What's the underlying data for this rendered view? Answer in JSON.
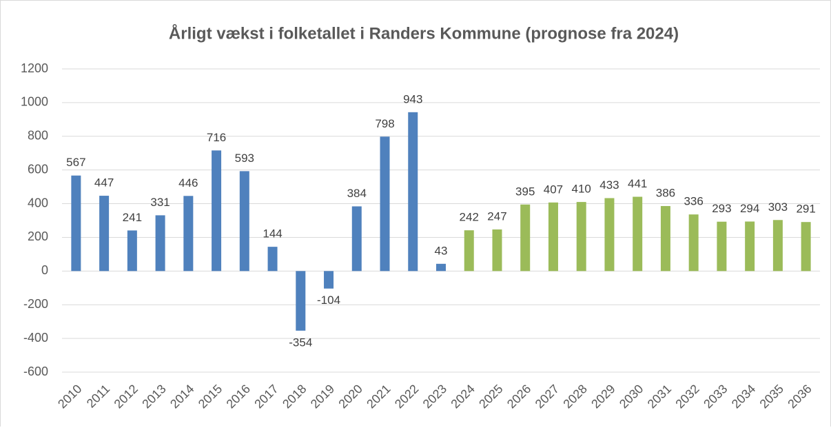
{
  "chart_data": {
    "type": "bar",
    "title": "Årligt vækst i folketallet i Randers Kommune (prognose fra 2024)",
    "categories": [
      "2010",
      "2011",
      "2012",
      "2013",
      "2014",
      "2015",
      "2016",
      "2017",
      "2018",
      "2019",
      "2020",
      "2021",
      "2022",
      "2023",
      "2024",
      "2025",
      "2026",
      "2027",
      "2028",
      "2029",
      "2030",
      "2031",
      "2032",
      "2033",
      "2034",
      "2035",
      "2036"
    ],
    "values": [
      567,
      447,
      241,
      331,
      446,
      716,
      593,
      144,
      -354,
      -104,
      384,
      798,
      943,
      43,
      242,
      247,
      395,
      407,
      410,
      433,
      441,
      386,
      336,
      293,
      294,
      303,
      291
    ],
    "colors": [
      "#4f81bd",
      "#4f81bd",
      "#4f81bd",
      "#4f81bd",
      "#4f81bd",
      "#4f81bd",
      "#4f81bd",
      "#4f81bd",
      "#4f81bd",
      "#4f81bd",
      "#4f81bd",
      "#4f81bd",
      "#4f81bd",
      "#4f81bd",
      "#9bbb59",
      "#9bbb59",
      "#9bbb59",
      "#9bbb59",
      "#9bbb59",
      "#9bbb59",
      "#9bbb59",
      "#9bbb59",
      "#9bbb59",
      "#9bbb59",
      "#9bbb59",
      "#9bbb59",
      "#9bbb59"
    ],
    "ylim": [
      -600,
      1200
    ],
    "yticks": [
      -600,
      -400,
      -200,
      0,
      200,
      400,
      600,
      800,
      1000,
      1200
    ],
    "grid": true,
    "data_labels": true
  }
}
